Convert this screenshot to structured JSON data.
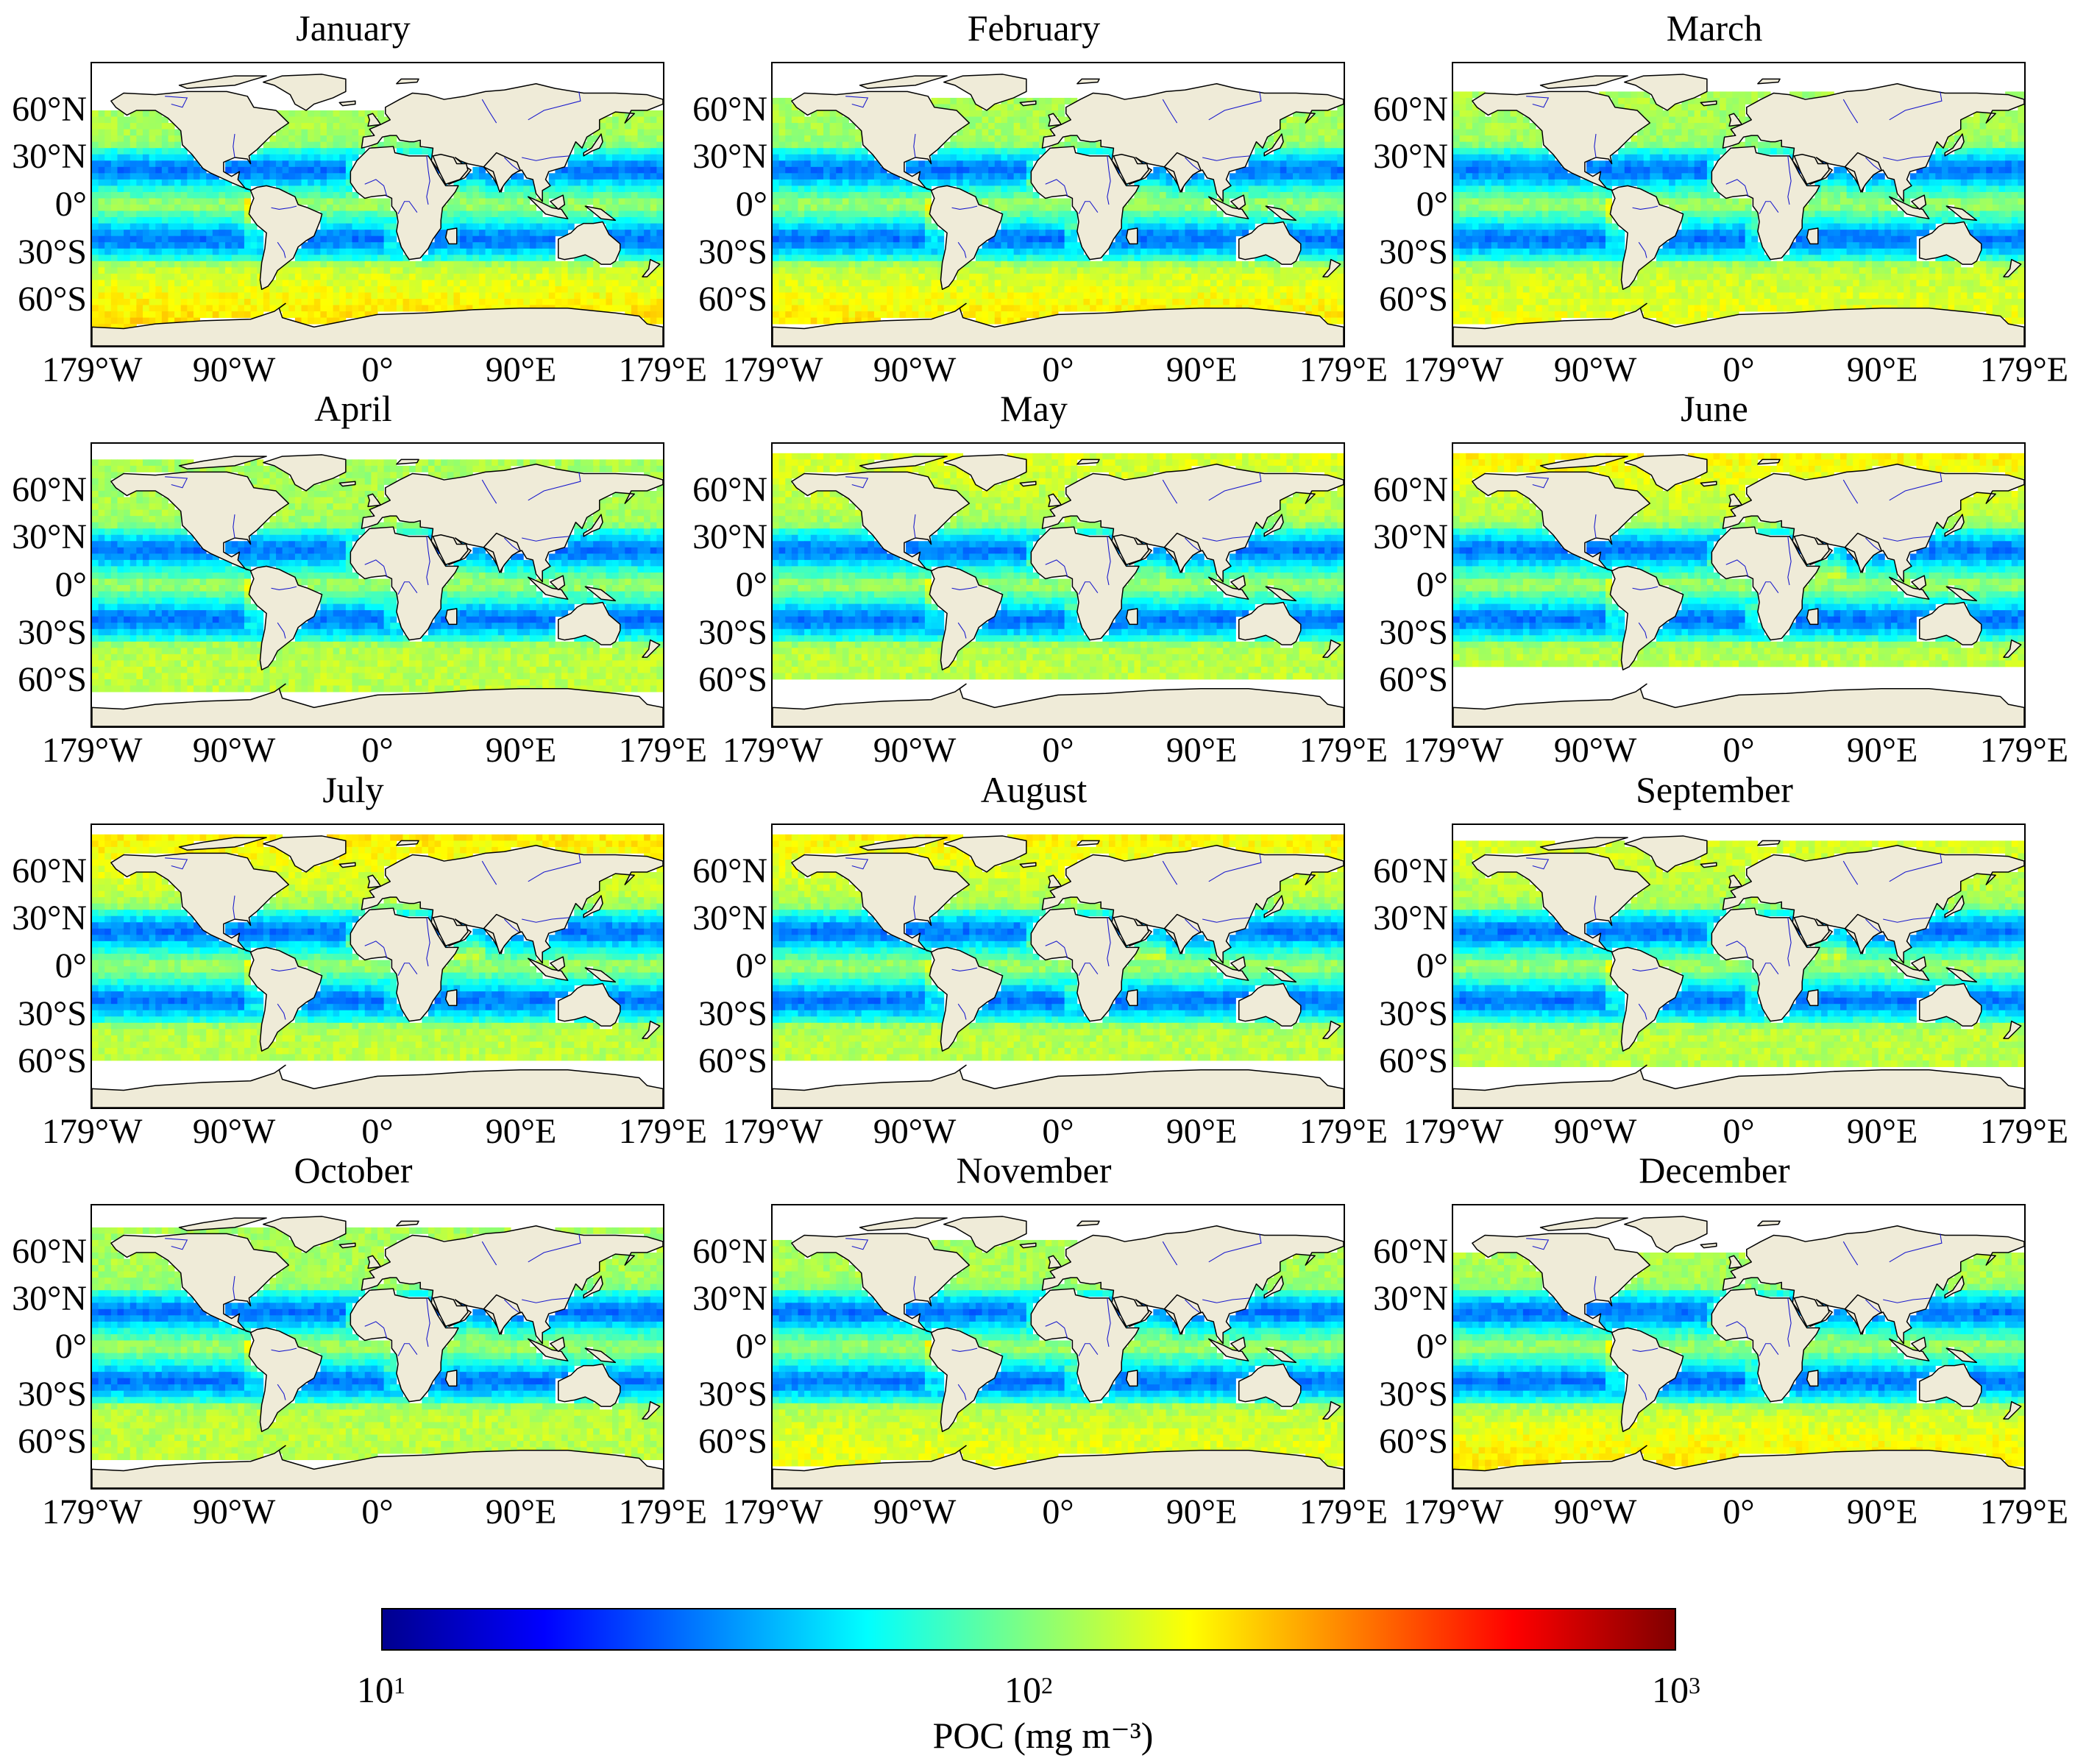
{
  "figure": {
    "panels": [
      {
        "title": "January",
        "month": 1,
        "south_limit": -78,
        "north_limit": 60
      },
      {
        "title": "February",
        "month": 2,
        "south_limit": -76,
        "north_limit": 66
      },
      {
        "title": "March",
        "month": 3,
        "south_limit": -76,
        "north_limit": 72
      },
      {
        "title": "April",
        "month": 4,
        "south_limit": -66,
        "north_limit": 78
      },
      {
        "title": "May",
        "month": 5,
        "south_limit": -60,
        "north_limit": 82
      },
      {
        "title": "June",
        "month": 6,
        "south_limit": -52,
        "north_limit": 84
      },
      {
        "title": "July",
        "month": 7,
        "south_limit": -58,
        "north_limit": 84
      },
      {
        "title": "August",
        "month": 8,
        "south_limit": -60,
        "north_limit": 84
      },
      {
        "title": "September",
        "month": 9,
        "south_limit": -64,
        "north_limit": 80
      },
      {
        "title": "October",
        "month": 10,
        "south_limit": -70,
        "north_limit": 76
      },
      {
        "title": "November",
        "month": 11,
        "south_limit": -76,
        "north_limit": 68
      },
      {
        "title": "December",
        "month": 12,
        "south_limit": -80,
        "north_limit": 58
      }
    ],
    "lat_ticks": [
      "60°N",
      "30°N",
      "0°",
      "30°S",
      "60°S"
    ],
    "lat_values": [
      60,
      30,
      0,
      -30,
      -60
    ],
    "lon_ticks": [
      "179°W",
      "90°W",
      "0°",
      "90°E",
      "179°E"
    ],
    "lon_values": [
      -179,
      -90,
      0,
      90,
      179
    ],
    "map_extent": {
      "lon": [
        -180,
        180
      ],
      "lat": [
        -90,
        90
      ]
    },
    "colors": {
      "land": "#efebd8",
      "coastline": "#000000",
      "rivers": "#1a1acc",
      "no_data": "#ffffff"
    },
    "colorbar": {
      "scale": "log",
      "range": [
        10,
        1000
      ],
      "colormap": "jet",
      "ticks": [
        {
          "base": "10",
          "exp": "1"
        },
        {
          "base": "10",
          "exp": "2"
        },
        {
          "base": "10",
          "exp": "3"
        }
      ],
      "label": "POC (mg m⁻³)",
      "stops": [
        "#00008f",
        "#0000ff",
        "#0080ff",
        "#00ffff",
        "#80ff80",
        "#ffff00",
        "#ff8000",
        "#ff0000",
        "#800000"
      ]
    }
  }
}
